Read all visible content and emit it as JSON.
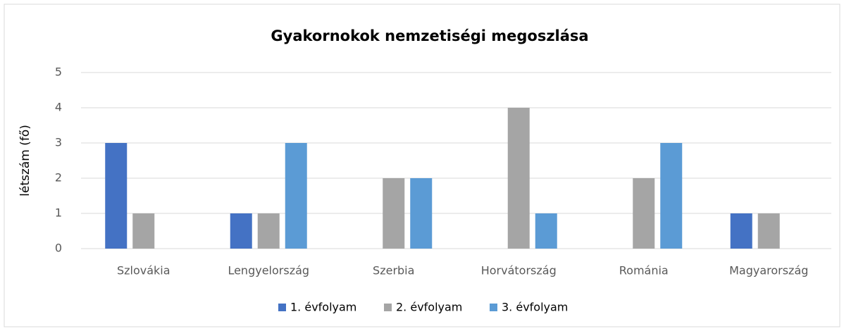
{
  "chart_data": {
    "type": "bar",
    "title": "Gyakornokok nemzetiségi megoszlása",
    "y_label": "létszám (fő)",
    "categories": [
      "Szlovákia",
      "Lengyelország",
      "Szerbia",
      "Horvátország",
      "Románia",
      "Magyarország"
    ],
    "series": [
      {
        "name": "1. évfolyam",
        "color": "#4472c4",
        "values": [
          3,
          1,
          0,
          0,
          0,
          1
        ]
      },
      {
        "name": "2. évfolyam",
        "color": "#a5a5a5",
        "values": [
          1,
          1,
          2,
          4,
          2,
          1
        ]
      },
      {
        "name": "3. évfolyam",
        "color": "#5b9bd5",
        "values": [
          0,
          3,
          2,
          1,
          3,
          0
        ]
      }
    ],
    "ylim": [
      0,
      5
    ],
    "yticks": [
      0,
      1,
      2,
      3,
      4,
      5
    ],
    "grid": true,
    "legend": "bottom"
  }
}
